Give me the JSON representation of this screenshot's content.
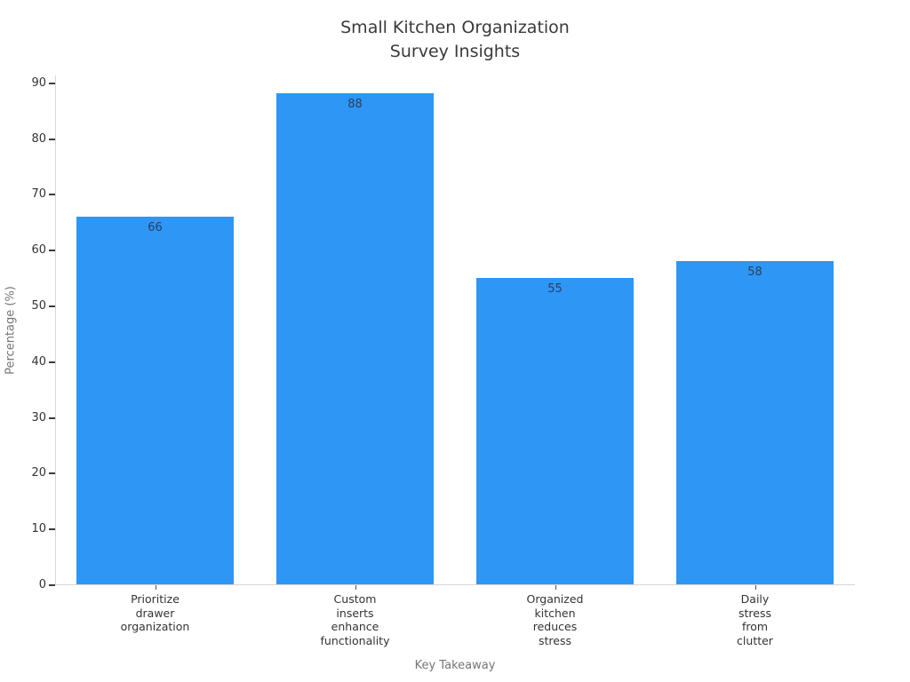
{
  "chart_data": {
    "type": "bar",
    "title": "Small Kitchen Organization\nSurvey Insights",
    "categories": [
      "Prioritize\ndrawer\norganization",
      "Custom\ninserts\nenhance\nfunctionality",
      "Organized\nkitchen\nreduces\nstress",
      "Daily\nstress\nfrom\nclutter"
    ],
    "values": [
      66,
      88,
      55,
      58
    ],
    "value_labels": [
      "66",
      "88",
      "55",
      "58"
    ],
    "xlabel": "Key Takeaway",
    "ylabel": "Percentage (%)",
    "ylim": [
      0,
      91.4
    ],
    "yticks": [
      0,
      10,
      20,
      30,
      40,
      50,
      60,
      70,
      80,
      90
    ],
    "bar_color": "#2e96f5",
    "grid": false,
    "legend": false,
    "colors": {
      "title_text": "#3a3a3a",
      "tick_text": "#333333",
      "axis_title_text": "#757575",
      "value_label_text": "#2a3f5f",
      "axis_line": "#d6d6d6",
      "tick_mark": "#3c3c3c"
    }
  }
}
